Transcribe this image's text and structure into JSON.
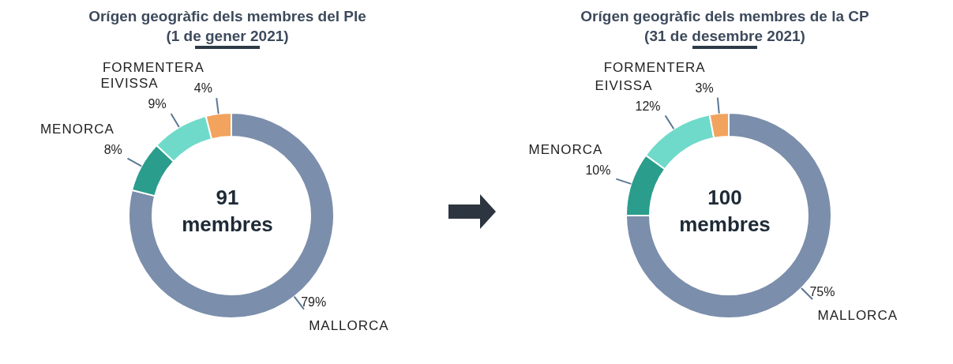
{
  "chart_data": [
    {
      "type": "donut",
      "title": "Orígen geogràfic dels membres del Ple",
      "subtitle": "(1 de gener 2021)",
      "categories": [
        "MALLORCA",
        "MENORCA",
        "EIVISSA",
        "FORMENTERA"
      ],
      "values": [
        79,
        8,
        9,
        4
      ],
      "colors": [
        "#7b8eab",
        "#2a9d8c",
        "#6fdaca",
        "#f2a35e"
      ],
      "value_labels": [
        "79%",
        "8%",
        "9%",
        "4%"
      ],
      "annotations": [
        "91 membres"
      ]
    },
    {
      "type": "donut",
      "title": "Orígen geogràfic dels membres de la CP",
      "subtitle": "(31 de desembre 2021)",
      "categories": [
        "MALLORCA",
        "MENORCA",
        "EIVISSA",
        "FORMENTERA"
      ],
      "values": [
        75,
        10,
        12,
        3
      ],
      "colors": [
        "#7b8eab",
        "#2a9d8c",
        "#6fdaca",
        "#f2a35e"
      ],
      "value_labels": [
        "75%",
        "10%",
        "12%",
        "3%"
      ],
      "annotations": [
        "100 membres"
      ]
    }
  ]
}
